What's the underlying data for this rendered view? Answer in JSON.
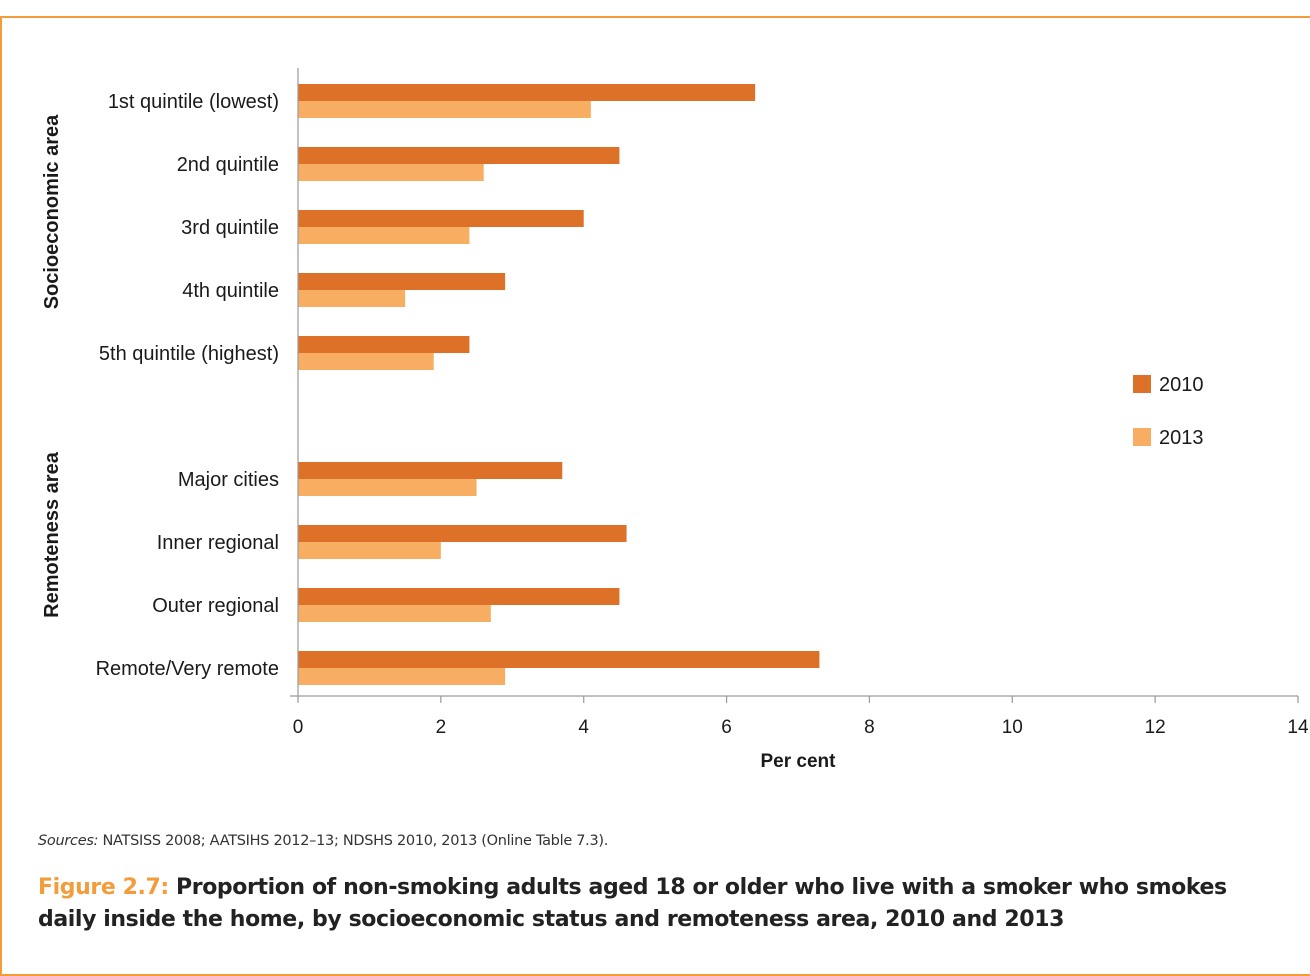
{
  "chart_data": {
    "type": "bar",
    "orientation": "horizontal",
    "categories": [
      "1st quintile (lowest)",
      "2nd quintile",
      "3rd quintile",
      "4th quintile",
      "5th quintile (highest)",
      "Major cities",
      "Inner regional",
      "Outer regional",
      "Remote/Very remote"
    ],
    "groups": [
      {
        "label": "Socioeconomic area",
        "categories": [
          "1st quintile (lowest)",
          "2nd quintile",
          "3rd quintile",
          "4th quintile",
          "5th quintile (highest)"
        ]
      },
      {
        "label": "Remoteness area",
        "categories": [
          "Major cities",
          "Inner regional",
          "Outer regional",
          "Remote/Very remote"
        ]
      }
    ],
    "series": [
      {
        "name": "2010",
        "color": "#de7128",
        "values": [
          6.4,
          4.5,
          4.0,
          2.9,
          2.4,
          3.7,
          4.6,
          4.5,
          7.3
        ]
      },
      {
        "name": "2013",
        "color": "#f8ae62",
        "values": [
          4.1,
          2.6,
          2.4,
          1.5,
          1.9,
          2.5,
          2.0,
          2.7,
          2.9
        ]
      }
    ],
    "xlabel": "Per cent",
    "xlim": [
      0,
      14
    ],
    "xticks": [
      "0",
      "2",
      "4",
      "6",
      "8",
      "10",
      "12",
      "14"
    ],
    "grid": false,
    "legend_position": "right"
  },
  "sources": {
    "label": "Sources:",
    "text": "NATSISS 2008; AATSIHS 2012–13; NDSHS 2010, 2013 (Online Table 7.3)."
  },
  "caption": {
    "figure_label": "Figure 2.7:",
    "text": "Proportion of non-smoking adults aged 18 or older who live with a smoker who smokes daily inside the home, by socioeconomic status and remoteness area, 2010 and 2013"
  }
}
